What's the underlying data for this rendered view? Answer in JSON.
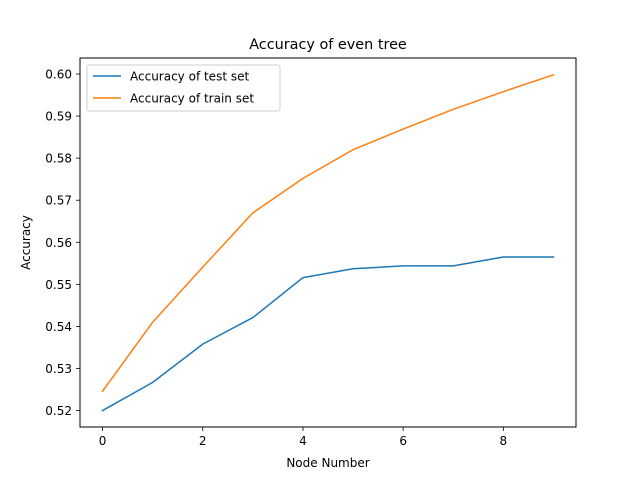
{
  "chart_data": {
    "type": "line",
    "title": "Accuracy of even tree",
    "xlabel": "Node Number",
    "ylabel": "Accuracy",
    "x": [
      0,
      1,
      2,
      3,
      4,
      5,
      6,
      7,
      8,
      9
    ],
    "xlim": [
      -0.45,
      9.45
    ],
    "ylim": [
      0.5161,
      0.6038
    ],
    "xticks": [
      0,
      2,
      4,
      6,
      8
    ],
    "xtick_labels": [
      "0",
      "2",
      "4",
      "6",
      "8"
    ],
    "yticks": [
      0.52,
      0.53,
      0.54,
      0.55,
      0.56,
      0.57,
      0.58,
      0.59,
      0.6
    ],
    "ytick_labels": [
      "0.52",
      "0.53",
      "0.54",
      "0.55",
      "0.56",
      "0.57",
      "0.58",
      "0.59",
      "0.60"
    ],
    "grid": false,
    "legend_position": "upper-left",
    "series": [
      {
        "name": "Accuracy of test set",
        "color": "#1f77b4",
        "values": [
          0.52,
          0.5267,
          0.5358,
          0.5421,
          0.5516,
          0.5537,
          0.5544,
          0.5544,
          0.5565,
          0.5565
        ]
      },
      {
        "name": "Accuracy of train set",
        "color": "#ff7f0e",
        "values": [
          0.5246,
          0.541,
          0.5541,
          0.567,
          0.5752,
          0.582,
          0.5869,
          0.5916,
          0.5958,
          0.5998
        ]
      }
    ]
  }
}
